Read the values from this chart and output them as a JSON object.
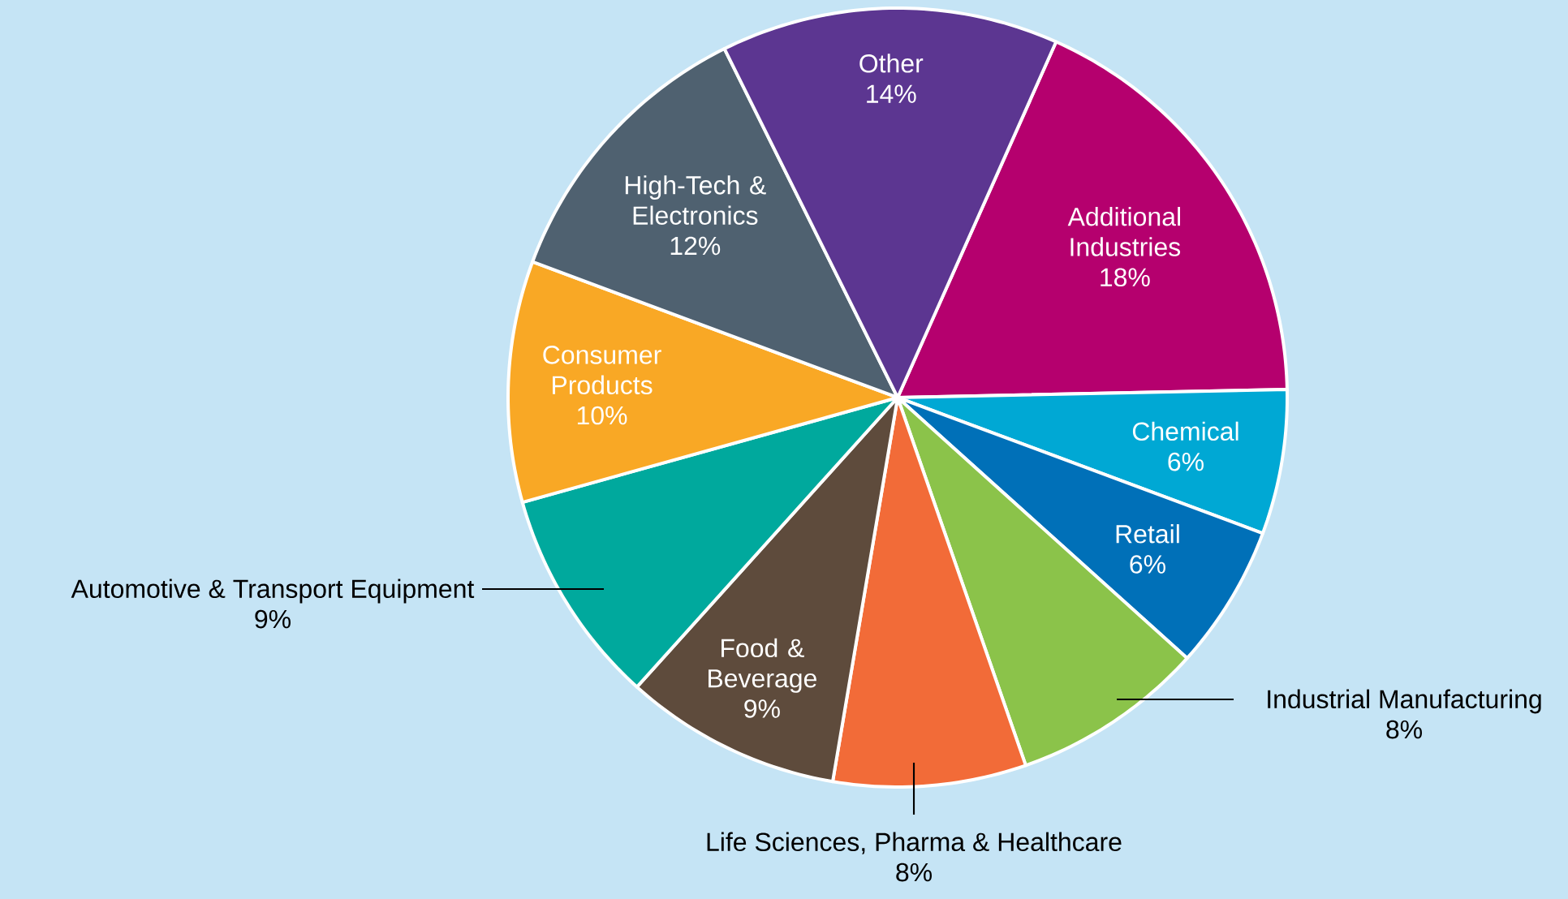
{
  "chart_data": {
    "type": "pie",
    "categories": [
      "Additional Industries",
      "Chemical",
      "Retail",
      "Industrial Manufacturing",
      "Life Sciences, Pharma & Healthcare",
      "Food & Beverage",
      "Automotive & Transport Equipment",
      "Consumer Products",
      "High-Tech & Electronics",
      "Other"
    ],
    "values": [
      18,
      6,
      6,
      8,
      8,
      9,
      9,
      10,
      12,
      14
    ],
    "value_labels": [
      "18%",
      "6%",
      "6%",
      "8%",
      "8%",
      "9%",
      "9%",
      "10%",
      "12%",
      "14%"
    ],
    "colors": [
      "#b5006e",
      "#00a8d4",
      "#0070b8",
      "#8bc34a",
      "#f26b38",
      "#5e4b3c",
      "#00a99d",
      "#f9a825",
      "#4f6170",
      "#5c3691"
    ]
  }
}
